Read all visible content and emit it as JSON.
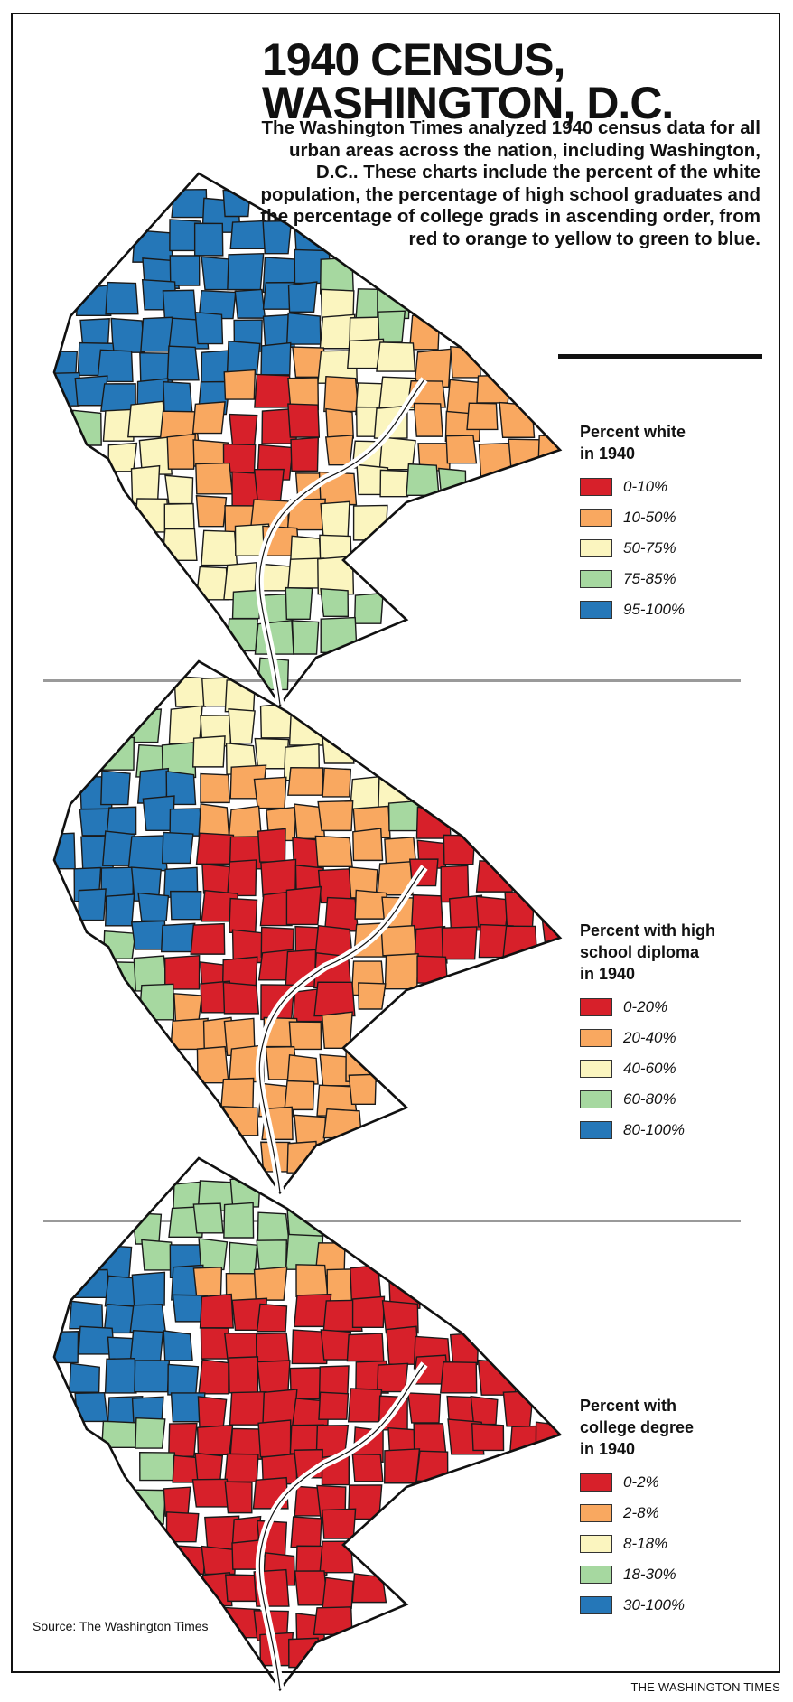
{
  "title_lines": [
    "1940 CENSUS,",
    "WASHINGTON, D.C."
  ],
  "intro": "The Washington Times analyzed 1940 census data for all urban areas across the nation, including Washington, D.C.. These charts include the percent of the white population, the percentage of high school graduates and the percentage of college grads in ascending order, from red to orange to yellow to green to blue.",
  "palette": [
    "#d7202a",
    "#f9a860",
    "#fbf5bf",
    "#a6d8a0",
    "#2577b8"
  ],
  "maps": [
    {
      "legend_title": [
        "Percent white",
        "in 1940"
      ],
      "ranges": [
        "0-10%",
        "10-50%",
        "50-75%",
        "75-85%",
        "95-100%"
      ]
    },
    {
      "legend_title": [
        "Percent with high",
        "school diploma",
        "in 1940"
      ],
      "ranges": [
        "0-20%",
        "20-40%",
        "40-60%",
        "60-80%",
        "80-100%"
      ]
    },
    {
      "legend_title": [
        "Percent with",
        "college degree",
        "in 1940"
      ],
      "ranges": [
        "0-2%",
        "2-8%",
        "8-18%",
        "18-30%",
        "30-100%"
      ]
    }
  ],
  "source": "Source: The Washington Times",
  "credit": "THE WASHINGTON TIMES"
}
